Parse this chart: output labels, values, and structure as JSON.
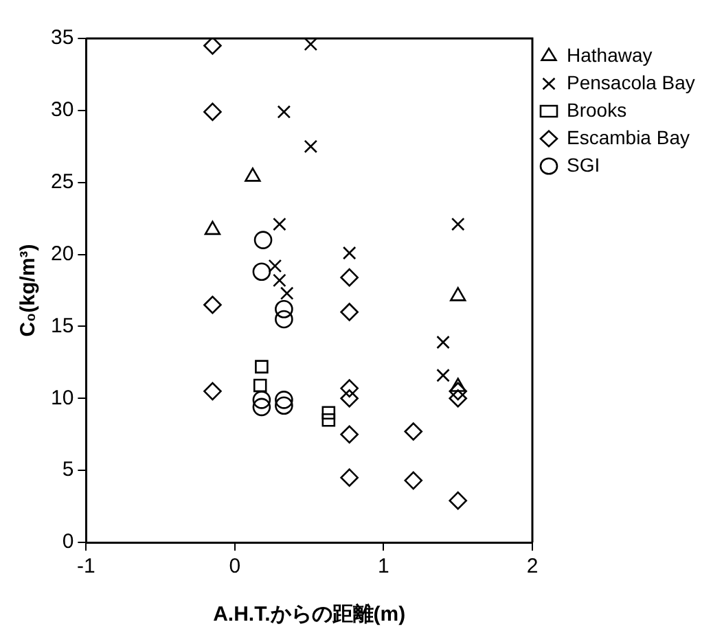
{
  "chart_data": {
    "type": "scatter",
    "xlabel": "A.H.T.からの距離(m)",
    "ylabel": "C₀(kg/m³)",
    "xlim": [
      -1,
      2
    ],
    "xticks": [
      -1,
      0,
      1,
      2
    ],
    "ylim": [
      0,
      35
    ],
    "yticks": [
      0,
      5,
      10,
      15,
      20,
      25,
      30,
      35
    ],
    "grid": false,
    "legend": "top right",
    "series": [
      {
        "name": "Hathaway",
        "color": "#000000",
        "marker": "triangle",
        "x": [
          -0.15,
          0.12,
          1.5,
          1.5
        ],
        "values": [
          21.7,
          25.4,
          17.1,
          10.8
        ]
      },
      {
        "name": "Pensacola Bay",
        "color": "#000000",
        "marker": "cross",
        "x": [
          0.33,
          0.3,
          0.27,
          0.3,
          0.35,
          0.51,
          0.51,
          0.77,
          1.5,
          1.4,
          1.4
        ],
        "values": [
          29.9,
          22.1,
          19.2,
          18.2,
          17.3,
          34.6,
          27.5,
          20.1,
          22.1,
          13.9,
          11.6
        ]
      },
      {
        "name": "Brooks",
        "color": "#000000",
        "marker": "square",
        "x": [
          0.18,
          0.17,
          0.63,
          0.63
        ],
        "values": [
          12.2,
          10.9,
          9,
          8.5
        ]
      },
      {
        "name": "Escambia Bay",
        "color": "#000000",
        "marker": "diamond",
        "x": [
          -0.15,
          -0.15,
          -0.15,
          -0.15,
          0.77,
          0.77,
          0.77,
          0.77,
          0.77,
          0.77,
          1.2,
          1.2,
          1.5,
          1.5,
          1.5
        ],
        "values": [
          34.5,
          29.9,
          16.5,
          10.5,
          18.4,
          16,
          10.7,
          10,
          7.5,
          4.5,
          7.7,
          4.3,
          10.5,
          10,
          2.9
        ]
      },
      {
        "name": "SGI",
        "color": "#000000",
        "marker": "circle",
        "x": [
          0.19,
          0.18,
          0.33,
          0.33,
          0.18,
          0.18,
          0.33,
          0.33
        ],
        "values": [
          21,
          18.8,
          16.2,
          15.5,
          9.9,
          9.4,
          9.9,
          9.5
        ]
      }
    ]
  }
}
